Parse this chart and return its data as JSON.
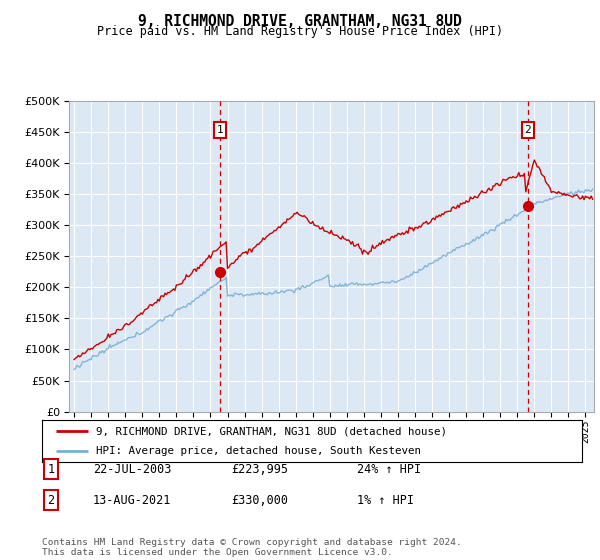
{
  "title": "9, RICHMOND DRIVE, GRANTHAM, NG31 8UD",
  "subtitle": "Price paid vs. HM Land Registry's House Price Index (HPI)",
  "ylim": [
    0,
    500000
  ],
  "yticks": [
    0,
    50000,
    100000,
    150000,
    200000,
    250000,
    300000,
    350000,
    400000,
    450000,
    500000
  ],
  "xlim_left": 1994.7,
  "xlim_right": 2025.5,
  "background_color": "#dce9f5",
  "grid_color": "#ffffff",
  "sale1_year": 2003.55,
  "sale1_price": 223995,
  "sale2_year": 2021.62,
  "sale2_price": 330000,
  "legend_line1": "9, RICHMOND DRIVE, GRANTHAM, NG31 8UD (detached house)",
  "legend_line2": "HPI: Average price, detached house, South Kesteven",
  "footer": "Contains HM Land Registry data © Crown copyright and database right 2024.\nThis data is licensed under the Open Government Licence v3.0.",
  "sale_color": "#cc0000",
  "hpi_color": "#7bafd4",
  "vline_color": "#cc0000",
  "table_row1": [
    "1",
    "22-JUL-2003",
    "£223,995",
    "24% ↑ HPI"
  ],
  "table_row2": [
    "2",
    "13-AUG-2021",
    "£330,000",
    "1% ↑ HPI"
  ]
}
